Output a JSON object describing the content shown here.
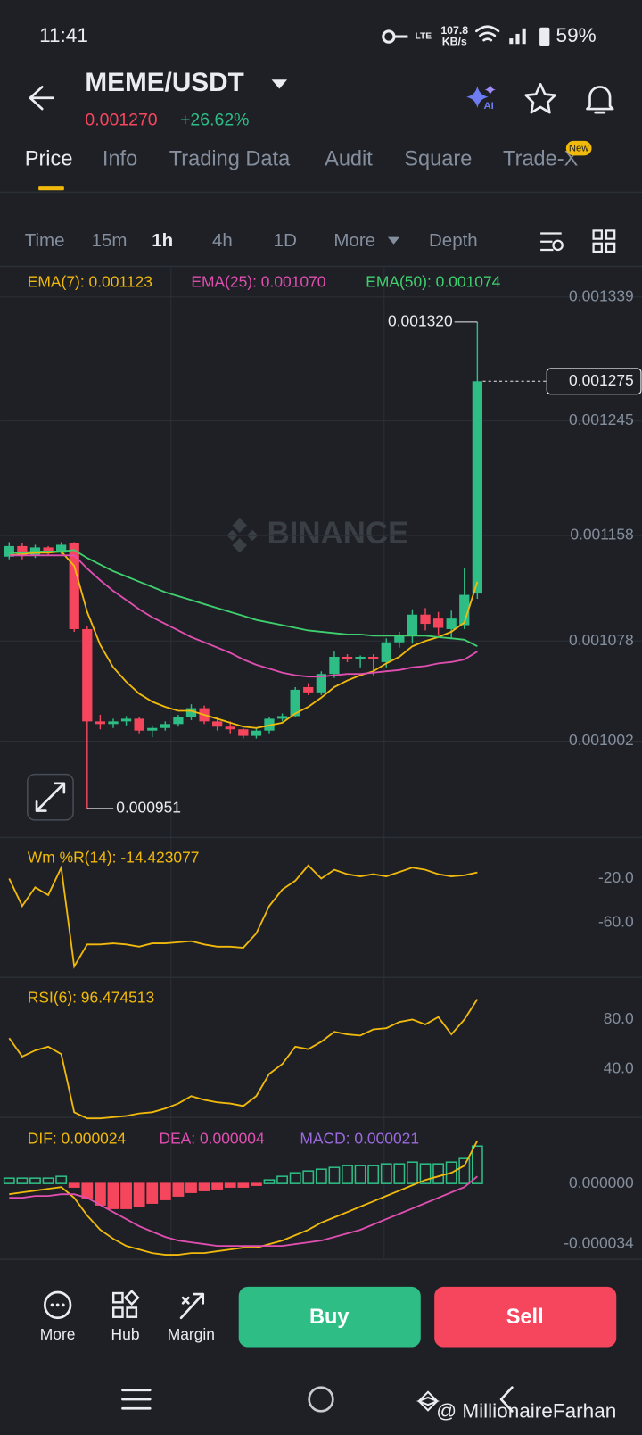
{
  "status_bar": {
    "time": "11:41",
    "network_speed": [
      "107.8",
      "KB/s"
    ],
    "battery": "59%"
  },
  "header": {
    "pair": "MEME/USDT",
    "price": "0.001270",
    "change": "+26.62%"
  },
  "tabs": {
    "items": [
      "Price",
      "Info",
      "Trading Data",
      "Audit",
      "Square",
      "Trade-X"
    ],
    "badge": "New"
  },
  "intervals": {
    "items": [
      "Time",
      "15m",
      "1h",
      "4h",
      "1D",
      "More",
      "Depth"
    ]
  },
  "watermark": "BINANCE",
  "chart_data": [
    {
      "type": "candlestick",
      "categories": [
        null,
        null,
        null,
        null,
        null,
        null,
        null,
        null,
        null,
        null,
        null,
        null,
        null,
        null,
        null,
        null,
        null,
        null,
        null,
        null,
        null,
        null,
        null,
        null,
        null,
        null,
        null,
        null,
        null,
        null,
        null,
        null,
        null,
        null,
        null,
        null,
        null
      ],
      "open": [
        0.001142,
        0.00115,
        0.001143,
        0.001149,
        0.001145,
        0.001152,
        0.001087,
        0.001017,
        0.001015,
        0.001017,
        0.001019,
        0.00101,
        0.001012,
        0.001015,
        0.00102,
        0.001027,
        0.001017,
        0.001013,
        0.001011,
        0.001006,
        0.00101,
        0.001019,
        0.001021,
        0.001043,
        0.001039,
        0.001053,
        0.001066,
        0.001064,
        0.001066,
        0.001062,
        0.001077,
        0.001082,
        0.001098,
        0.001095,
        0.001087,
        0.00109,
        0.001114
      ],
      "high": [
        0.001153,
        0.001152,
        0.001151,
        0.00115,
        0.001153,
        0.001153,
        0.001089,
        0.001022,
        0.001019,
        0.001021,
        0.00102,
        0.001014,
        0.001017,
        0.001022,
        0.00103,
        0.001029,
        0.00102,
        0.001017,
        0.001012,
        0.001012,
        0.00102,
        0.001023,
        0.001043,
        0.001046,
        0.001055,
        0.00107,
        0.001068,
        0.001067,
        0.001068,
        0.00108,
        0.001085,
        0.001102,
        0.001103,
        0.0011,
        0.001101,
        0.001133,
        0.00132
      ],
      "low": [
        0.00114,
        0.00114,
        0.001141,
        0.001143,
        0.001144,
        0.001085,
        0.000951,
        0.001011,
        0.001012,
        0.001014,
        0.001008,
        0.001005,
        0.00101,
        0.001013,
        0.001018,
        0.001015,
        0.00101,
        0.001008,
        0.001004,
        0.001004,
        0.001008,
        0.001017,
        0.00102,
        0.001037,
        0.001037,
        0.00105,
        0.001062,
        0.001058,
        0.001052,
        0.001058,
        0.001073,
        0.001076,
        0.001086,
        0.001082,
        0.00108,
        0.001087,
        0.00111
      ],
      "close": [
        0.00115,
        0.001143,
        0.001149,
        0.001145,
        0.001151,
        0.001087,
        0.001017,
        0.001015,
        0.001017,
        0.001019,
        0.00101,
        0.001012,
        0.001015,
        0.00102,
        0.001027,
        0.001017,
        0.001013,
        0.001011,
        0.001006,
        0.00101,
        0.001019,
        0.001021,
        0.001041,
        0.001039,
        0.001053,
        0.001066,
        0.001064,
        0.001066,
        0.001064,
        0.001077,
        0.001082,
        0.001098,
        0.001091,
        0.001088,
        0.001095,
        0.001113,
        0.001275
      ],
      "up_color": "#2ebd85",
      "down_color": "#f6465d",
      "series": [
        {
          "name": "EMA(7): 0.001123",
          "color": "#f0b90b",
          "values": [
            0.001143,
            0.001144,
            0.001145,
            0.001145,
            0.001146,
            0.001135,
            0.0011,
            0.001075,
            0.001058,
            0.001047,
            0.001038,
            0.001032,
            0.001028,
            0.001025,
            0.001025,
            0.001022,
            0.001019,
            0.001016,
            0.001013,
            0.001012,
            0.001014,
            0.001016,
            0.001023,
            0.001028,
            0.001035,
            0.001043,
            0.001048,
            0.001052,
            0.001055,
            0.001061,
            0.001066,
            0.001074,
            0.001078,
            0.001081,
            0.001085,
            0.001092,
            0.001123
          ]
        },
        {
          "name": "EMA(25): 0.001070",
          "color": "#e04fb0",
          "values": [
            0.001143,
            0.001143,
            0.001143,
            0.001143,
            0.001143,
            0.001143,
            0.001133,
            0.001124,
            0.001116,
            0.001109,
            0.001102,
            0.001096,
            0.001091,
            0.001086,
            0.001081,
            0.001077,
            0.001073,
            0.001069,
            0.001064,
            0.00106,
            0.001057,
            0.001054,
            0.001052,
            0.001051,
            0.001051,
            0.001052,
            0.001053,
            0.001053,
            0.001054,
            0.001055,
            0.001056,
            0.001058,
            0.001059,
            0.001061,
            0.001062,
            0.001064,
            0.00107
          ]
        },
        {
          "name": "EMA(50): 0.001074",
          "color": "#3fcf6e",
          "values": [
            0.001145,
            0.001145,
            0.001146,
            0.001146,
            0.001146,
            0.001147,
            0.001141,
            0.001136,
            0.001131,
            0.001127,
            0.001123,
            0.001119,
            0.001115,
            0.001112,
            0.001109,
            0.001106,
            0.001103,
            0.0011,
            0.001097,
            0.001094,
            0.001092,
            0.00109,
            0.001088,
            0.001086,
            0.001085,
            0.001084,
            0.001083,
            0.001083,
            0.001082,
            0.001082,
            0.001082,
            0.001082,
            0.001082,
            0.001081,
            0.00108,
            0.001079,
            0.001074
          ]
        }
      ],
      "ylim": [
        0.000929,
        0.001356
      ],
      "yticks": [
        0.001339,
        0.001245,
        0.001158,
        0.001078,
        0.001002
      ],
      "grid": true,
      "annotations": {
        "high": {
          "value": 0.00132,
          "label": "0.001320"
        },
        "low": 0.000951,
        "last": 0.001275
      }
    },
    {
      "type": "line",
      "title": "Wm %R(14): -14.423077",
      "color": "#f0b90b",
      "categories": [
        null,
        null,
        null,
        null,
        null,
        null,
        null,
        null,
        null,
        null,
        null,
        null,
        null,
        null,
        null,
        null,
        null,
        null,
        null,
        null,
        null,
        null,
        null,
        null,
        null,
        null,
        null,
        null,
        null,
        null,
        null,
        null,
        null,
        null,
        null,
        null,
        null
      ],
      "values": [
        -20,
        -45,
        -28,
        -35,
        -10,
        -100,
        -80,
        -80,
        -79,
        -80,
        -82,
        -79,
        -79,
        -78,
        -77,
        -80,
        -82,
        -82,
        -83,
        -70,
        -45,
        -30,
        -22,
        -8,
        -20,
        -12,
        -16,
        -18,
        -16,
        -18,
        -14,
        -10,
        -12,
        -16,
        -18,
        -17,
        -14.423077
      ],
      "ylim": [
        -100,
        0
      ],
      "yticks": [
        {
          "value": -20,
          "label": "-20.0"
        },
        {
          "value": -60,
          "label": "-60.0"
        }
      ]
    },
    {
      "type": "line",
      "title": "RSI(6): 96.474513",
      "color": "#f0b90b",
      "categories": [
        null,
        null,
        null,
        null,
        null,
        null,
        null,
        null,
        null,
        null,
        null,
        null,
        null,
        null,
        null,
        null,
        null,
        null,
        null,
        null,
        null,
        null,
        null,
        null,
        null,
        null,
        null,
        null,
        null,
        null,
        null,
        null,
        null,
        null,
        null,
        null,
        null
      ],
      "values": [
        65,
        50,
        55,
        58,
        52,
        5,
        0,
        0,
        1,
        2,
        4,
        5,
        8,
        12,
        18,
        15,
        13,
        12,
        10,
        18,
        36,
        44,
        58,
        56,
        62,
        70,
        68,
        67,
        72,
        73,
        78,
        80,
        76,
        82,
        68,
        80,
        96.474513
      ],
      "ylim": [
        0,
        100
      ],
      "yticks": [
        {
          "value": 80,
          "label": "80.0"
        },
        {
          "value": 40,
          "label": "40.0"
        }
      ]
    },
    {
      "type": "macd",
      "categories": [
        null,
        null,
        null,
        null,
        null,
        null,
        null,
        null,
        null,
        null,
        null,
        null,
        null,
        null,
        null,
        null,
        null,
        null,
        null,
        null,
        null,
        null,
        null,
        null,
        null,
        null,
        null,
        null,
        null,
        null,
        null,
        null,
        null,
        null,
        null,
        null,
        null
      ],
      "series": [
        {
          "name": "DIF: 0.000024",
          "color": "#f0b90b",
          "values": [
            -6e-06,
            -5e-06,
            -4e-06,
            -3e-06,
            -2e-06,
            -8e-06,
            -1.8e-05,
            -2.6e-05,
            -3.1e-05,
            -3.5e-05,
            -3.7e-05,
            -3.9e-05,
            -4e-05,
            -4e-05,
            -3.9e-05,
            -3.9e-05,
            -3.8e-05,
            -3.7e-05,
            -3.6e-05,
            -3.6e-05,
            -3.4e-05,
            -3.2e-05,
            -2.9e-05,
            -2.6e-05,
            -2.2e-05,
            -1.9e-05,
            -1.6e-05,
            -1.3e-05,
            -1e-05,
            -7e-06,
            -4e-06,
            -1e-06,
            2e-06,
            4e-06,
            6e-06,
            1e-05,
            2.4e-05
          ]
        },
        {
          "name": "DEA: 0.000004",
          "color": "#e04fb0",
          "values": [
            -8e-06,
            -8e-06,
            -7e-06,
            -7e-06,
            -6e-06,
            -6e-06,
            -8e-06,
            -1.2e-05,
            -1.6e-05,
            -2e-05,
            -2.4e-05,
            -2.7e-05,
            -3e-05,
            -3.2e-05,
            -3.3e-05,
            -3.4e-05,
            -3.5e-05,
            -3.5e-05,
            -3.5e-05,
            -3.5e-05,
            -3.5e-05,
            -3.5e-05,
            -3.4e-05,
            -3.3e-05,
            -3.2e-05,
            -3e-05,
            -2.8e-05,
            -2.6e-05,
            -2.3e-05,
            -2e-05,
            -1.7e-05,
            -1.4e-05,
            -1.1e-05,
            -8e-06,
            -5e-06,
            -2e-06,
            4e-06
          ]
        },
        {
          "name": "MACD: 0.000021",
          "color": "#9c6ade",
          "up_color": "#2ebd85",
          "down_color": "#f6465d",
          "values": [
            3e-06,
            3e-06,
            3e-06,
            3e-06,
            4e-06,
            -2e-06,
            -8e-06,
            -1.2e-05,
            -1.4e-05,
            -1.4e-05,
            -1.3e-05,
            -1.1e-05,
            -9e-06,
            -7e-06,
            -5e-06,
            -4e-06,
            -3e-06,
            -2e-06,
            -2e-06,
            -1e-06,
            2e-06,
            4e-06,
            6e-06,
            7e-06,
            8e-06,
            9e-06,
            1e-05,
            1e-05,
            1e-05,
            1.1e-05,
            1.1e-05,
            1.2e-05,
            1.1e-05,
            1.1e-05,
            1.2e-05,
            1.4e-05,
            2.1e-05
          ]
        }
      ],
      "ylim": [
        -4.2e-05,
        3.5e-05
      ],
      "yticks": [
        {
          "value": 0,
          "label": "0.000000"
        },
        -3.4e-05
      ]
    }
  ],
  "bottom_bar": {
    "actions": [
      "More",
      "Hub",
      "Margin"
    ],
    "buy": "Buy",
    "sell": "Sell"
  },
  "credit": "@ MillionaireFarhan"
}
